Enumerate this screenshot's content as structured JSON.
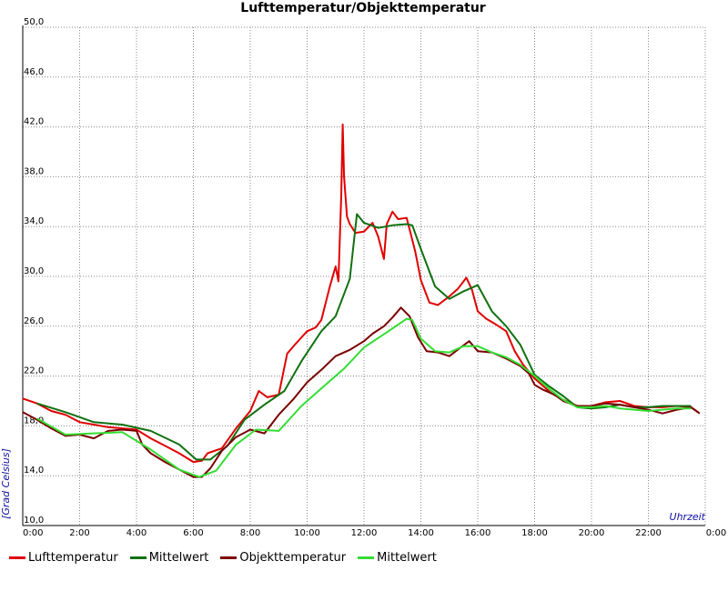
{
  "chart_data": {
    "type": "line",
    "title": "Lufttemperatur/Objekttemperatur",
    "xlabel": "Uhrzeit",
    "ylabel": "[Grad Celsius]",
    "xlim": [
      0,
      24
    ],
    "ylim": [
      10,
      50
    ],
    "x_ticks": [
      "0:00",
      "2:00",
      "4:00",
      "6:00",
      "8:00",
      "10:00",
      "12:00",
      "14:00",
      "16:00",
      "18:00",
      "20:00",
      "22:00",
      "0:00"
    ],
    "y_ticks": [
      "10,0",
      "14,0",
      "18,0",
      "22,0",
      "26,0",
      "30,0",
      "34,0",
      "38,0",
      "42,0",
      "46,0",
      "50,0"
    ],
    "y_tick_values": [
      10,
      14,
      18,
      22,
      26,
      30,
      34,
      38,
      42,
      46,
      50
    ],
    "grid": true,
    "legend_position": "bottom",
    "series": [
      {
        "name": "Lufttemperatur",
        "color": "#e00000",
        "x": [
          0,
          0.5,
          1,
          1.5,
          2,
          2.5,
          3,
          3.5,
          4,
          4.5,
          5,
          5.5,
          6,
          6.3,
          6.5,
          7,
          7.5,
          8,
          8.3,
          8.6,
          9,
          9.3,
          9.6,
          10,
          10.3,
          10.5,
          10.8,
          11,
          11.1,
          11.2,
          11.25,
          11.3,
          11.4,
          11.5,
          11.7,
          12,
          12.3,
          12.5,
          12.7,
          12.8,
          13,
          13.2,
          13.5,
          13.8,
          14,
          14.3,
          14.6,
          15,
          15.3,
          15.6,
          15.8,
          16,
          16.3,
          16.6,
          17,
          17.3,
          17.6,
          18,
          18.3,
          18.6,
          19,
          19.5,
          20,
          20.5,
          21,
          21.5,
          22,
          22.5,
          23,
          23.5,
          23.8
        ],
        "values": [
          20.2,
          19.8,
          19.2,
          18.9,
          18.3,
          18.1,
          17.9,
          17.8,
          17.7,
          17.0,
          16.4,
          15.8,
          15.1,
          15.2,
          15.8,
          16.2,
          17.8,
          19.2,
          20.8,
          20.3,
          20.5,
          23.8,
          24.6,
          25.6,
          25.9,
          26.5,
          29.2,
          30.8,
          29.6,
          36.5,
          42.2,
          38.0,
          34.8,
          34.2,
          33.5,
          33.6,
          34.3,
          33.2,
          31.4,
          34.2,
          35.2,
          34.6,
          34.7,
          32.0,
          29.7,
          27.9,
          27.7,
          28.4,
          29.0,
          29.9,
          28.9,
          27.2,
          26.6,
          26.2,
          25.6,
          24.0,
          22.9,
          21.8,
          21.2,
          20.6,
          20.1,
          19.6,
          19.6,
          19.9,
          20.0,
          19.6,
          19.5,
          19.5,
          19.6,
          19.5,
          19.0
        ]
      },
      {
        "name": "Mittelwert",
        "color": "#107010",
        "x": [
          0.5,
          1.5,
          2.5,
          3.5,
          4.5,
          5.5,
          6.1,
          6.6,
          7.2,
          7.8,
          8.5,
          9.2,
          9.8,
          10.5,
          11.0,
          11.5,
          11.75,
          12.0,
          12.5,
          13.0,
          13.5,
          13.7,
          14.0,
          14.5,
          15.0,
          15.5,
          16.0,
          16.5,
          17.0,
          17.5,
          18.0,
          18.5,
          19.0,
          19.5,
          20.0,
          20.5,
          21.0,
          21.5,
          22.0,
          22.5,
          23.0,
          23.5
        ],
        "values": [
          19.8,
          19.1,
          18.3,
          18.1,
          17.6,
          16.5,
          15.3,
          15.3,
          16.4,
          18.5,
          19.7,
          20.8,
          23.2,
          25.6,
          26.8,
          29.8,
          35.0,
          34.3,
          33.9,
          34.1,
          34.2,
          34.1,
          32.2,
          29.2,
          28.2,
          28.8,
          29.3,
          27.2,
          26.0,
          24.5,
          22.1,
          21.2,
          20.4,
          19.5,
          19.4,
          19.5,
          19.7,
          19.5,
          19.5,
          19.6,
          19.6,
          19.6
        ]
      },
      {
        "name": "Objekttemperatur",
        "color": "#7a0000",
        "x": [
          0,
          0.5,
          1,
          1.5,
          2,
          2.5,
          3,
          3.5,
          4,
          4.2,
          4.5,
          5,
          5.5,
          6,
          6.3,
          6.6,
          7,
          7.5,
          8,
          8.5,
          9,
          9.5,
          10,
          10.5,
          11,
          11.5,
          12,
          12.3,
          12.7,
          13,
          13.3,
          13.6,
          13.9,
          14.2,
          14.6,
          15,
          15.4,
          15.7,
          16,
          16.5,
          17,
          17.5,
          17.8,
          18,
          18.3,
          18.7,
          19,
          19.5,
          20,
          20.5,
          21,
          21.5,
          22,
          22.5,
          23,
          23.5,
          23.8
        ],
        "values": [
          19.1,
          18.5,
          17.8,
          17.2,
          17.3,
          17.0,
          17.6,
          17.7,
          17.6,
          16.5,
          15.8,
          15.1,
          14.5,
          13.9,
          13.9,
          14.6,
          16.0,
          17.1,
          17.7,
          17.4,
          18.9,
          20.1,
          21.5,
          22.5,
          23.6,
          24.1,
          24.8,
          25.4,
          26.0,
          26.7,
          27.5,
          26.8,
          25.1,
          24.0,
          23.9,
          23.6,
          24.3,
          24.8,
          24.0,
          23.9,
          23.4,
          22.8,
          22.2,
          21.3,
          20.9,
          20.5,
          20.0,
          19.6,
          19.6,
          19.8,
          19.7,
          19.5,
          19.3,
          19.0,
          19.3,
          19.5,
          19.0
        ]
      },
      {
        "name": "Mittelwert",
        "color": "#33dd33",
        "x": [
          0.5,
          1.5,
          2.5,
          3.5,
          4.5,
          5.5,
          6.2,
          6.8,
          7.5,
          8.2,
          9,
          9.8,
          10.5,
          11.3,
          12,
          12.8,
          13.5,
          13.7,
          14,
          14.5,
          15,
          15.5,
          16,
          16.5,
          17,
          17.5,
          18,
          18.5,
          19,
          19.5,
          20,
          20.5,
          21,
          21.5,
          22,
          22.5,
          23,
          23.5
        ],
        "values": [
          18.6,
          17.3,
          17.4,
          17.5,
          16.1,
          14.5,
          13.9,
          14.4,
          16.5,
          17.7,
          17.6,
          19.6,
          21.0,
          22.6,
          24.3,
          25.5,
          26.6,
          26.5,
          25.0,
          24.0,
          23.9,
          24.4,
          24.4,
          23.9,
          23.5,
          22.9,
          22.0,
          21.0,
          20.1,
          19.5,
          19.5,
          19.6,
          19.4,
          19.3,
          19.2,
          19.3,
          19.4,
          19.4
        ]
      }
    ]
  }
}
